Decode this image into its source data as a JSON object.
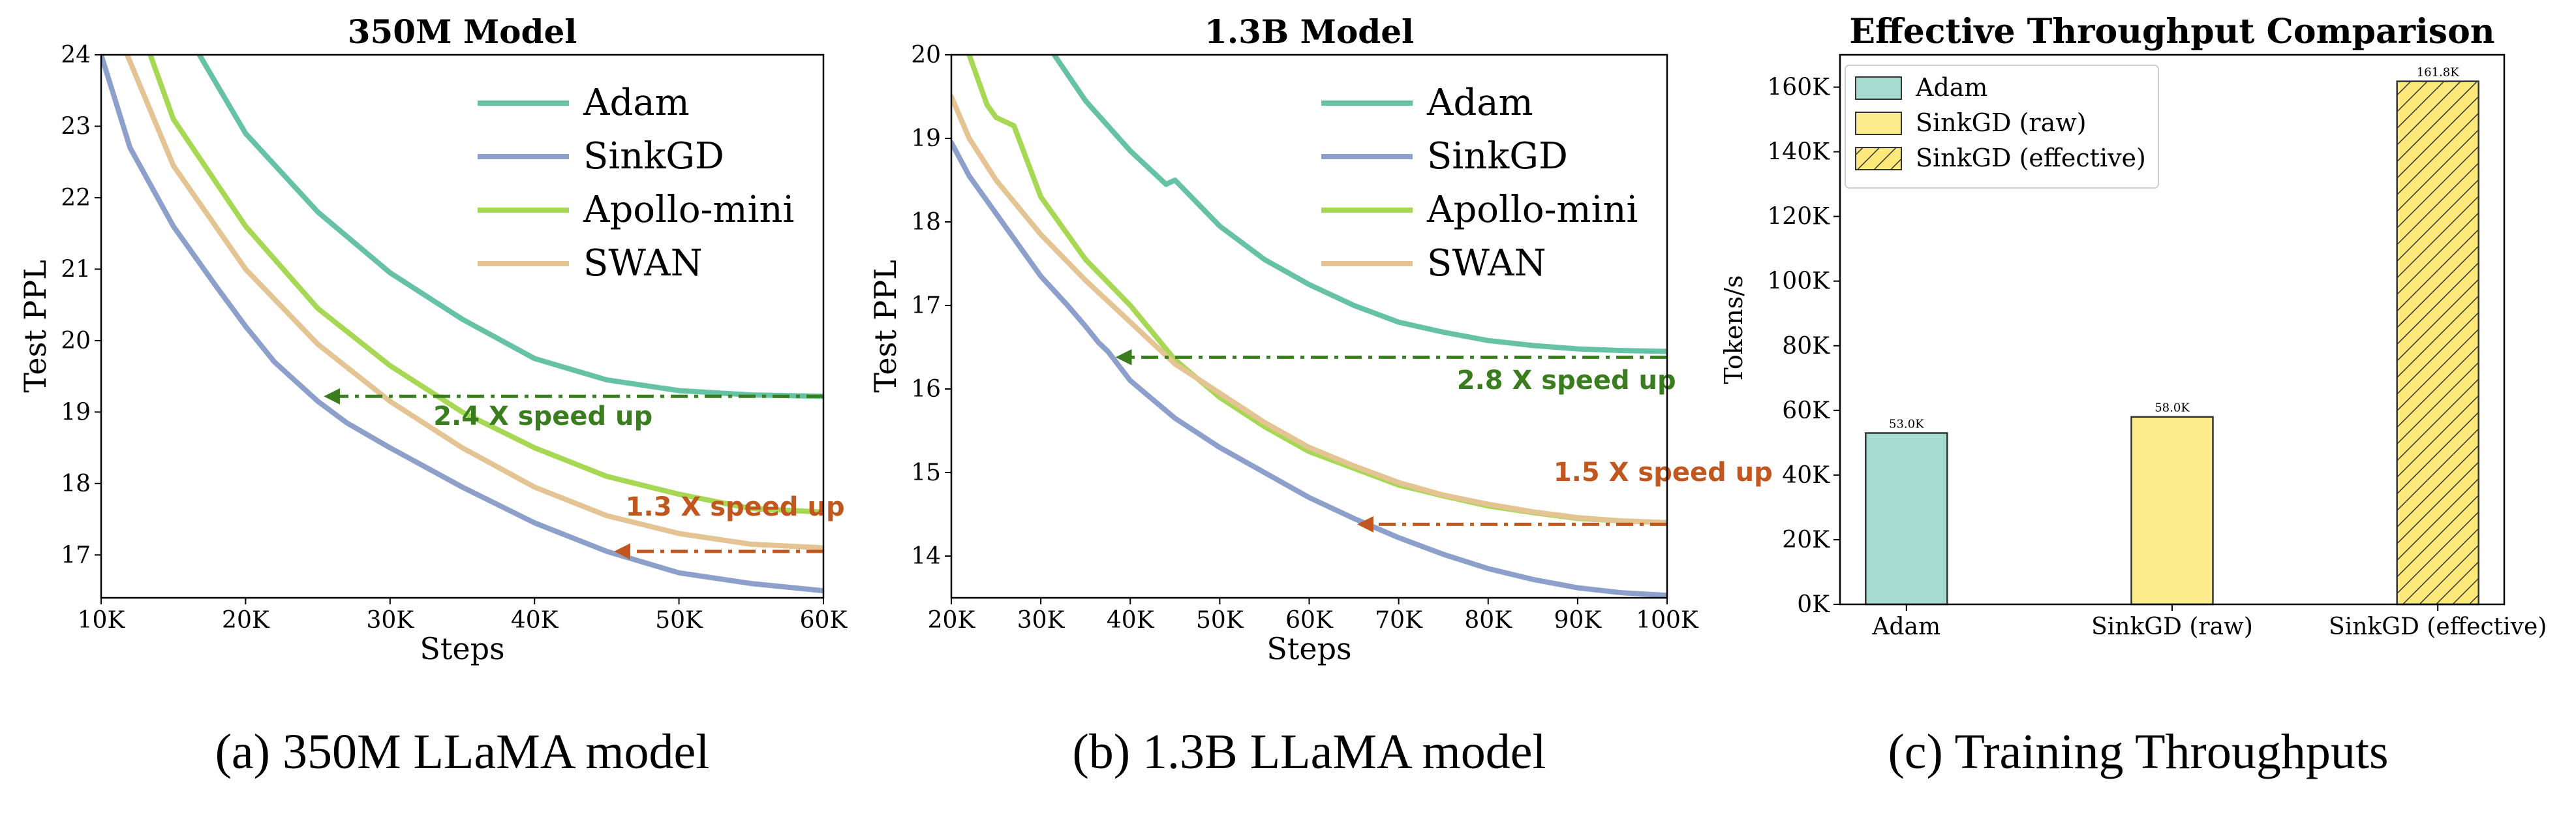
{
  "chart_data": [
    {
      "type": "line",
      "title": "350M Model",
      "xlabel": "Steps",
      "ylabel": "Test PPL",
      "caption": "(a) 350M LLaMA model",
      "xlim": [
        10000,
        60000
      ],
      "ylim": [
        16.4,
        24
      ],
      "xticks": [
        10000,
        20000,
        30000,
        40000,
        50000,
        60000
      ],
      "xtick_labels": [
        "10K",
        "20K",
        "30K",
        "40K",
        "50K",
        "60K"
      ],
      "yticks": [
        17,
        18,
        19,
        20,
        21,
        22,
        23,
        24
      ],
      "ytick_labels": [
        "17",
        "18",
        "19",
        "20",
        "21",
        "22",
        "23",
        "24"
      ],
      "legend_position": "upper-right",
      "series": [
        {
          "name": "Adam",
          "color": "#66c2a5",
          "x": [
            16800,
            20000,
            25000,
            30000,
            35000,
            40000,
            45000,
            50000,
            55000,
            60000
          ],
          "y": [
            24.0,
            22.9,
            21.8,
            20.95,
            20.3,
            19.75,
            19.45,
            19.3,
            19.24,
            19.22
          ]
        },
        {
          "name": "SinkGD",
          "color": "#8da0cb",
          "x": [
            10000,
            12000,
            15000,
            18000,
            20000,
            22000,
            25000,
            27000,
            30000,
            35000,
            40000,
            45000,
            50000,
            55000,
            60000
          ],
          "y": [
            24.0,
            22.7,
            21.6,
            20.75,
            20.2,
            19.7,
            19.15,
            18.85,
            18.5,
            17.95,
            17.45,
            17.05,
            16.75,
            16.6,
            16.5
          ]
        },
        {
          "name": "Apollo-mini",
          "color": "#a6d854",
          "x": [
            13400,
            15000,
            20000,
            25000,
            30000,
            35000,
            40000,
            45000,
            50000,
            55000,
            60000
          ],
          "y": [
            24.0,
            23.1,
            21.6,
            20.45,
            19.65,
            19.0,
            18.5,
            18.1,
            17.85,
            17.65,
            17.6
          ]
        },
        {
          "name": "SWAN",
          "color": "#e5c494",
          "x": [
            11800,
            15000,
            20000,
            25000,
            30000,
            35000,
            40000,
            45000,
            50000,
            55000,
            60000
          ],
          "y": [
            24.0,
            22.45,
            21.0,
            19.95,
            19.15,
            18.5,
            17.95,
            17.55,
            17.3,
            17.15,
            17.1
          ]
        }
      ],
      "annotations": [
        {
          "text": "2.4 X speed up",
          "color": "#3a7d1e",
          "arrow_from": [
            60000,
            19.22
          ],
          "arrow_to": [
            25500,
            19.22
          ],
          "text_at": [
            33000,
            18.82
          ]
        },
        {
          "text": "1.3 X speed up",
          "color": "#c1561e",
          "arrow_from": [
            60000,
            17.05
          ],
          "arrow_to": [
            45600,
            17.05
          ],
          "text_at": [
            46300,
            17.55
          ]
        }
      ]
    },
    {
      "type": "line",
      "title": "1.3B Model",
      "xlabel": "Steps",
      "ylabel": "Test PPL",
      "caption": "(b) 1.3B LLaMA model",
      "xlim": [
        20000,
        100000
      ],
      "ylim": [
        13.5,
        20
      ],
      "xticks": [
        20000,
        30000,
        40000,
        50000,
        60000,
        70000,
        80000,
        90000,
        100000
      ],
      "xtick_labels": [
        "20K",
        "30K",
        "40K",
        "50K",
        "60K",
        "70K",
        "80K",
        "90K",
        "100K"
      ],
      "yticks": [
        14,
        15,
        16,
        17,
        18,
        19,
        20
      ],
      "ytick_labels": [
        "14",
        "15",
        "16",
        "17",
        "18",
        "19",
        "20"
      ],
      "legend_position": "upper-right",
      "series": [
        {
          "name": "Adam",
          "color": "#66c2a5",
          "x": [
            31500,
            35000,
            40000,
            44000,
            45000,
            50000,
            55000,
            60000,
            65000,
            70000,
            75000,
            80000,
            85000,
            90000,
            95000,
            100000
          ],
          "y": [
            20.0,
            19.45,
            18.85,
            18.45,
            18.5,
            17.95,
            17.55,
            17.25,
            17.0,
            16.8,
            16.68,
            16.58,
            16.52,
            16.48,
            16.46,
            16.45
          ]
        },
        {
          "name": "SinkGD",
          "color": "#8da0cb",
          "x": [
            20000,
            22000,
            25000,
            28000,
            30000,
            33000,
            35000,
            36500,
            37500,
            40000,
            45000,
            50000,
            55000,
            60000,
            65000,
            70000,
            75000,
            80000,
            85000,
            90000,
            95000,
            100000
          ],
          "y": [
            18.95,
            18.55,
            18.1,
            17.65,
            17.35,
            17.0,
            16.75,
            16.55,
            16.45,
            16.1,
            15.65,
            15.3,
            15.0,
            14.7,
            14.45,
            14.22,
            14.02,
            13.85,
            13.72,
            13.62,
            13.56,
            13.53
          ]
        },
        {
          "name": "Apollo-mini",
          "color": "#a6d854",
          "x": [
            22000,
            24000,
            25000,
            27000,
            30000,
            35000,
            40000,
            45000,
            50000,
            55000,
            60000,
            65000,
            70000,
            75000,
            80000,
            85000,
            90000,
            95000,
            100000
          ],
          "y": [
            20.0,
            19.4,
            19.25,
            19.15,
            18.3,
            17.55,
            17.0,
            16.35,
            15.9,
            15.55,
            15.25,
            15.05,
            14.85,
            14.72,
            14.6,
            14.52,
            14.45,
            14.42,
            14.4
          ]
        },
        {
          "name": "SWAN",
          "color": "#e5c494",
          "x": [
            20000,
            22000,
            25000,
            30000,
            35000,
            40000,
            45000,
            50000,
            55000,
            60000,
            65000,
            70000,
            75000,
            80000,
            85000,
            90000,
            95000,
            100000
          ],
          "y": [
            19.5,
            19.0,
            18.5,
            17.85,
            17.3,
            16.8,
            16.3,
            15.95,
            15.6,
            15.3,
            15.08,
            14.88,
            14.73,
            14.62,
            14.53,
            14.46,
            14.42,
            14.4
          ]
        }
      ],
      "annotations": [
        {
          "text": "2.8 X speed up",
          "color": "#3a7d1e",
          "arrow_from": [
            100000,
            16.38
          ],
          "arrow_to": [
            38500,
            16.38
          ],
          "text_at": [
            76500,
            16.0
          ]
        },
        {
          "text": "1.5 X speed up",
          "color": "#c1561e",
          "arrow_from": [
            100000,
            14.38
          ],
          "arrow_to": [
            65500,
            14.38
          ],
          "text_at": [
            87300,
            14.9
          ]
        }
      ]
    },
    {
      "type": "bar",
      "title": "Effective Throughput Comparison",
      "xlabel": "",
      "ylabel": "Tokens/s",
      "caption": "(c) Training Throughputs",
      "categories": [
        "Adam",
        "SinkGD (raw)",
        "SinkGD (effective)"
      ],
      "values": [
        53000,
        58000,
        161800
      ],
      "value_labels": [
        "53.0K",
        "58.0K",
        "161.8K"
      ],
      "colors": [
        "#a6dcd0",
        "#fdec8c",
        "#fde87a"
      ],
      "hatched": [
        false,
        false,
        true
      ],
      "ylim": [
        0,
        170000
      ],
      "yticks": [
        0,
        20000,
        40000,
        60000,
        80000,
        100000,
        120000,
        140000,
        160000
      ],
      "ytick_labels": [
        "0K",
        "20K",
        "40K",
        "60K",
        "80K",
        "100K",
        "120K",
        "140K",
        "160K"
      ],
      "legend": [
        "Adam",
        "SinkGD (raw)",
        "SinkGD (effective)"
      ],
      "legend_position": "upper-left"
    }
  ]
}
